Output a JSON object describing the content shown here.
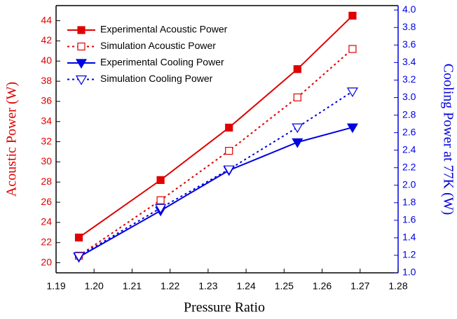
{
  "chart_data": {
    "type": "line",
    "x_label": "Pressure Ratio",
    "y_label": "Acoustic Power (W)",
    "y2_label": "Cooling Power at 77K (W)",
    "x": [
      1.196,
      1.2175,
      1.2355,
      1.2535,
      1.268
    ],
    "series": [
      {
        "name": "Experimental Acoustic Power",
        "color": "#e00000",
        "marker": "square",
        "filled": true,
        "dash": "solid",
        "values": [
          22.5,
          28.2,
          33.4,
          39.2,
          44.5
        ]
      },
      {
        "name": "Simulation Acoustic Power",
        "color": "#e00000",
        "marker": "square",
        "filled": false,
        "dash": "dotted",
        "values": [
          20.7,
          26.2,
          31.1,
          36.4,
          41.2
        ]
      },
      {
        "name": "Experimental Cooling Power",
        "color": "#0000e0",
        "marker": "triangle-down",
        "filled": true,
        "dash": "solid",
        "axis": "y2",
        "values": [
          1.18,
          1.71,
          2.17,
          2.49,
          2.66
        ]
      },
      {
        "name": "Simulation Cooling Power",
        "color": "#0000e0",
        "marker": "triangle-down",
        "filled": false,
        "dash": "dotted",
        "axis": "y2",
        "values": [
          1.19,
          1.74,
          2.18,
          2.66,
          3.07
        ]
      }
    ],
    "xlim": [
      1.19,
      1.28
    ],
    "xticks": [
      1.19,
      {
        "value": 1.2,
        "label": "1.20"
      },
      1.21,
      1.22,
      1.23,
      1.24,
      1.25,
      1.26,
      1.27,
      1.28
    ],
    "ylim": [
      19,
      45.5
    ],
    "yticks": [
      20,
      22,
      24,
      26,
      28,
      30,
      32,
      34,
      36,
      38,
      40,
      42,
      44
    ],
    "y2lim": [
      1.0,
      4.05
    ],
    "y2ticks": [
      {
        "value": 1.0,
        "label": "1.0"
      },
      1.2,
      1.4,
      1.6,
      1.8,
      {
        "value": 2.0,
        "label": "2.0"
      },
      2.2,
      2.4,
      2.6,
      2.8,
      {
        "value": 3.0,
        "label": "3.0"
      },
      3.2,
      3.4,
      3.6,
      3.8,
      {
        "value": 4.0,
        "label": "4.0"
      }
    ],
    "y_color": "#e00000",
    "y2_color": "#0000e0",
    "legend": "upper left"
  }
}
